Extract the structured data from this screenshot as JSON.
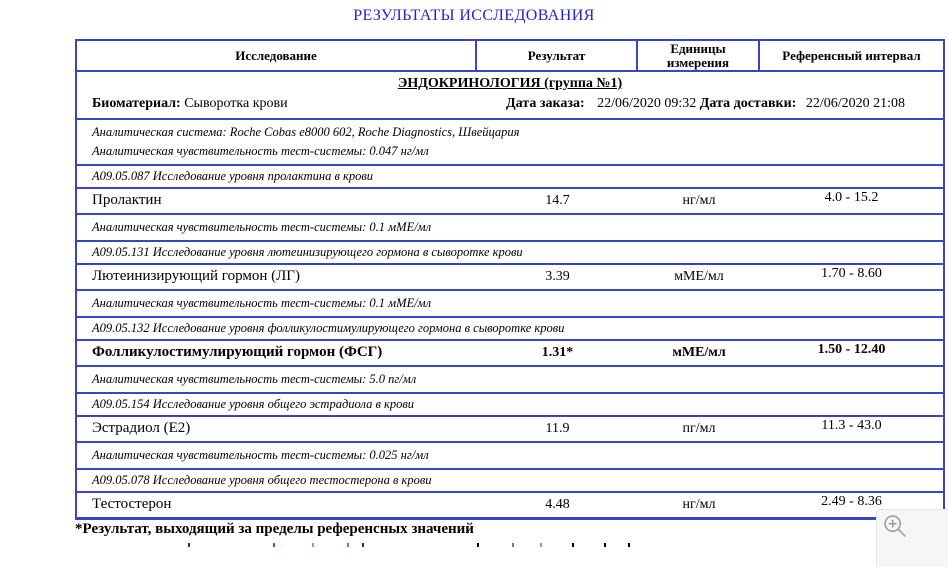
{
  "title": "РЕЗУЛЬТАТЫ ИССЛЕДОВАНИЯ",
  "table": {
    "headers": [
      "Исследование",
      "Результат",
      "Единицы измерения",
      "Референсный интервал"
    ],
    "section_title": "ЭНДОКРИНОЛОГИЯ (группа №1)",
    "biomaterial": {
      "label": "Биоматериал:",
      "value": "Сыворотка крови"
    },
    "order_date": {
      "label": "Дата заказа:",
      "value": "22/06/2020 09:32"
    },
    "delivery_date": {
      "label": "Дата доставки:",
      "value": "22/06/2020 21:08"
    },
    "tests": [
      {
        "info_lines": [
          "Аналитическая система: Roche Cobas e8000 602, Roche Diagnostics, Швейцария",
          "Аналитическая чувствительность тест-системы: 0.047 нг/мл"
        ],
        "code_line": "А09.05.087 Исследование уровня пролактина в крови",
        "name": "Пролактин",
        "result": "14.7",
        "units": "нг/мл",
        "reference": "4.0 - 15.2",
        "out_of_range": false
      },
      {
        "info_lines": [
          "Аналитическая чувствительность тест-системы: 0.1 мМЕ/мл"
        ],
        "code_line": "А09.05.131 Исследование уровня лютеинизирующего гормона в сыворотке крови",
        "name": "Лютеинизирующий гормон (ЛГ)",
        "result": "3.39",
        "units": "мМЕ/мл",
        "reference": "1.70 - 8.60",
        "out_of_range": false
      },
      {
        "info_lines": [
          "Аналитическая чувствительность тест-системы: 0.1 мМЕ/мл"
        ],
        "code_line": "А09.05.132 Исследование уровня фолликулостимулирующего гормона в сыворотке крови",
        "name": "Фолликулостимулирующий гормон (ФСГ)",
        "result": "1.31*",
        "units": "мМЕ/мл",
        "reference": "1.50 - 12.40",
        "out_of_range": true
      },
      {
        "info_lines": [
          "Аналитическая чувствительность тест-системы: 5.0 пг/мл"
        ],
        "code_line": "А09.05.154 Исследование уровня общего эстрадиола в крови",
        "name": "Эстрадиол (Е2)",
        "result": "11.9",
        "units": "пг/мл",
        "reference": "11.3 - 43.0",
        "out_of_range": false
      },
      {
        "info_lines": [
          "Аналитическая чувствительность тест-системы: 0.025 нг/мл"
        ],
        "code_line": "А09.05.078 Исследование уровня общего тестостерона в крови",
        "name": "Тестостерон",
        "result": "4.48",
        "units": "нг/мл",
        "reference": "2.49 - 8.36",
        "out_of_range": false
      }
    ]
  },
  "footnote": "*Результат, выходящий за пределы референсных значений",
  "viewer": {
    "zoom_icon": "magnifier-plus-icon"
  },
  "colors": {
    "title_blue": "#2525cf",
    "border_blue": "#3a45c6",
    "text": "#000000",
    "panel_gray": "#f6f6f6",
    "icon_gray": "#9e9e9e"
  }
}
